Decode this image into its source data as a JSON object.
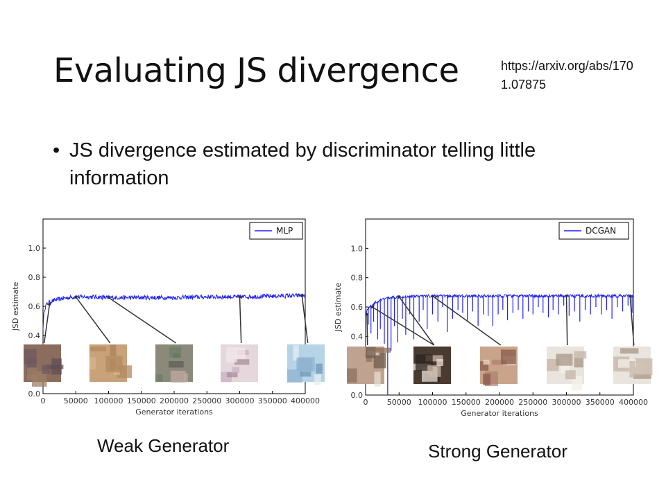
{
  "slide": {
    "title": "Evaluating JS divergence",
    "reference": "https://arxiv.org/abs/1701.07875",
    "bullet": "JS divergence estimated by discriminator telling little information",
    "captions": {
      "weak": "Weak Generator",
      "strong": "Strong Generator"
    }
  },
  "colors": {
    "series": "#1f1fff",
    "sample_arrow": "#333333"
  },
  "chart_data": [
    {
      "type": "line",
      "xlabel": "Generator iterations",
      "ylabel": "JSD estimate",
      "xlim": [
        0,
        400000
      ],
      "ylim": [
        0.0,
        1.2
      ],
      "xticks": [
        0,
        50000,
        100000,
        150000,
        200000,
        250000,
        300000,
        350000,
        400000
      ],
      "yticks": [
        0.0,
        0.2,
        0.4,
        0.6,
        0.8,
        1.0
      ],
      "legend": "top-right",
      "grid": false,
      "series": [
        {
          "name": "MLP",
          "x": [
            0,
            2000,
            5000,
            10000,
            20000,
            30000,
            50000,
            75000,
            100000,
            150000,
            200000,
            250000,
            300000,
            350000,
            400000
          ],
          "y": [
            0.45,
            0.58,
            0.61,
            0.63,
            0.645,
            0.655,
            0.665,
            0.665,
            0.66,
            0.66,
            0.66,
            0.665,
            0.665,
            0.67,
            0.675
          ],
          "noise": 0.015
        }
      ],
      "sample_images": [
        {
          "x": 10000,
          "y": 0.615
        },
        {
          "x": 50000,
          "y": 0.665
        },
        {
          "x": 100000,
          "y": 0.66
        },
        {
          "x": 300000,
          "y": 0.665
        },
        {
          "x": 395000,
          "y": 0.675
        }
      ]
    },
    {
      "type": "line",
      "xlabel": "Generator iterations",
      "ylabel": "JSD estimate",
      "xlim": [
        0,
        400000
      ],
      "ylim": [
        0.0,
        1.2
      ],
      "xticks": [
        0,
        50000,
        100000,
        150000,
        200000,
        250000,
        300000,
        350000,
        400000
      ],
      "yticks": [
        0.0,
        0.2,
        0.4,
        0.6,
        0.8,
        1.0
      ],
      "legend": "top-right",
      "grid": false,
      "series": [
        {
          "name": "DCGAN",
          "x": [
            0,
            5000,
            15000,
            30000,
            50000,
            75000,
            100000,
            150000,
            200000,
            250000,
            300000,
            350000,
            400000
          ],
          "y": [
            0.56,
            0.6,
            0.63,
            0.66,
            0.67,
            0.675,
            0.675,
            0.675,
            0.675,
            0.675,
            0.675,
            0.675,
            0.675
          ],
          "noise": 0.01,
          "downward_spikes": [
            [
              4000,
              0.48
            ],
            [
              8000,
              0.42
            ],
            [
              12000,
              0.5
            ],
            [
              18000,
              0.38
            ],
            [
              22000,
              0.45
            ],
            [
              28000,
              0.35
            ],
            [
              33000,
              0.0
            ],
            [
              38000,
              0.3
            ],
            [
              43000,
              0.47
            ],
            [
              48000,
              0.36
            ],
            [
              55000,
              0.52
            ],
            [
              60000,
              0.41
            ],
            [
              66000,
              0.55
            ],
            [
              72000,
              0.38
            ],
            [
              80000,
              0.5
            ],
            [
              86000,
              0.58
            ],
            [
              92000,
              0.45
            ],
            [
              100000,
              0.55
            ],
            [
              108000,
              0.5
            ],
            [
              115000,
              0.6
            ],
            [
              122000,
              0.43
            ],
            [
              130000,
              0.52
            ],
            [
              138000,
              0.58
            ],
            [
              145000,
              0.56
            ],
            [
              152000,
              0.5
            ],
            [
              160000,
              0.57
            ],
            [
              168000,
              0.47
            ],
            [
              176000,
              0.55
            ],
            [
              183000,
              0.54
            ],
            [
              190000,
              0.47
            ],
            [
              198000,
              0.55
            ],
            [
              205000,
              0.58
            ],
            [
              212000,
              0.51
            ],
            [
              220000,
              0.56
            ],
            [
              228000,
              0.58
            ],
            [
              235000,
              0.52
            ],
            [
              243000,
              0.57
            ],
            [
              250000,
              0.55
            ],
            [
              258000,
              0.6
            ],
            [
              265000,
              0.56
            ],
            [
              273000,
              0.53
            ],
            [
              280000,
              0.58
            ],
            [
              288000,
              0.55
            ],
            [
              296000,
              0.61
            ],
            [
              304000,
              0.54
            ],
            [
              312000,
              0.57
            ],
            [
              320000,
              0.5
            ],
            [
              328000,
              0.58
            ],
            [
              336000,
              0.55
            ],
            [
              344000,
              0.6
            ],
            [
              352000,
              0.55
            ],
            [
              360000,
              0.58
            ],
            [
              368000,
              0.52
            ],
            [
              376000,
              0.6
            ],
            [
              384000,
              0.57
            ],
            [
              392000,
              0.61
            ],
            [
              398000,
              0.56
            ]
          ]
        }
      ],
      "sample_images": [
        {
          "x": 2000,
          "y": 0.55
        },
        {
          "x": 10000,
          "y": 0.6
        },
        {
          "x": 50000,
          "y": 0.67
        },
        {
          "x": 100000,
          "y": 0.675
        },
        {
          "x": 300000,
          "y": 0.675
        },
        {
          "x": 395000,
          "y": 0.675
        }
      ]
    }
  ]
}
